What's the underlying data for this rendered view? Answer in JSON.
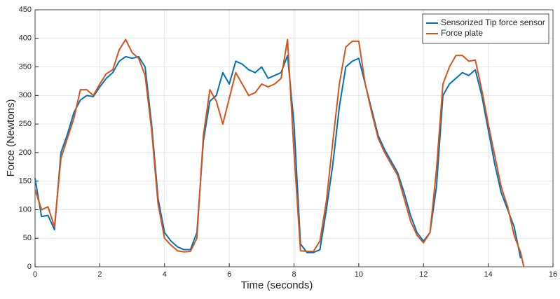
{
  "chart_data": {
    "type": "line",
    "x_label": "Time (seconds)",
    "y_label": "Force (Newtons)",
    "x": [
      0,
      0.2,
      0.4,
      0.6,
      0.8,
      1.0,
      1.2,
      1.4,
      1.6,
      1.8,
      2.0,
      2.2,
      2.4,
      2.6,
      2.8,
      3.0,
      3.2,
      3.4,
      3.6,
      3.8,
      4.0,
      4.2,
      4.4,
      4.6,
      4.8,
      5.0,
      5.2,
      5.4,
      5.6,
      5.8,
      6.0,
      6.2,
      6.4,
      6.6,
      6.8,
      7.0,
      7.2,
      7.4,
      7.6,
      7.8,
      8.0,
      8.2,
      8.4,
      8.6,
      8.8,
      9.0,
      9.2,
      9.4,
      9.6,
      9.8,
      10.0,
      10.2,
      10.4,
      10.6,
      10.8,
      11.0,
      11.2,
      11.4,
      11.6,
      11.8,
      12.0,
      12.2,
      12.4,
      12.6,
      12.8,
      13.0,
      13.2,
      13.4,
      13.6,
      13.8,
      14.0,
      14.2,
      14.4,
      14.6,
      14.8,
      15.0,
      15.1
    ],
    "series": [
      {
        "name": "Sensorized Tip force sensor",
        "color": "#0072bd",
        "values": [
          155,
          88,
          90,
          65,
          200,
          232,
          270,
          292,
          300,
          298,
          315,
          330,
          340,
          360,
          368,
          365,
          368,
          350,
          250,
          120,
          60,
          45,
          35,
          30,
          30,
          60,
          220,
          290,
          300,
          340,
          320,
          360,
          355,
          345,
          340,
          350,
          330,
          335,
          340,
          370,
          250,
          40,
          25,
          25,
          30,
          100,
          180,
          280,
          350,
          360,
          365,
          320,
          275,
          230,
          205,
          185,
          165,
          130,
          90,
          60,
          45,
          60,
          140,
          300,
          320,
          330,
          340,
          335,
          345,
          300,
          240,
          180,
          130,
          100,
          70,
          15,
          null
        ]
      },
      {
        "name": "Force plate",
        "color": "#d95319",
        "values": [
          135,
          100,
          105,
          70,
          190,
          225,
          260,
          310,
          310,
          300,
          320,
          338,
          345,
          380,
          398,
          375,
          365,
          335,
          240,
          110,
          50,
          38,
          28,
          26,
          27,
          50,
          230,
          310,
          290,
          250,
          295,
          340,
          320,
          300,
          305,
          320,
          315,
          320,
          330,
          398,
          200,
          28,
          27,
          27,
          45,
          115,
          220,
          320,
          385,
          395,
          395,
          320,
          270,
          225,
          200,
          180,
          160,
          120,
          80,
          55,
          42,
          60,
          170,
          320,
          350,
          370,
          370,
          360,
          362,
          310,
          250,
          195,
          140,
          105,
          55,
          25,
          0
        ]
      }
    ],
    "xlim": [
      0,
      16
    ],
    "xticks": [
      0,
      2,
      4,
      6,
      8,
      10,
      12,
      14,
      16
    ],
    "ylim": [
      0,
      450
    ],
    "yticks": [
      0,
      50,
      100,
      150,
      200,
      250,
      300,
      350,
      400,
      450
    ],
    "grid": true,
    "legend": "top-right"
  }
}
